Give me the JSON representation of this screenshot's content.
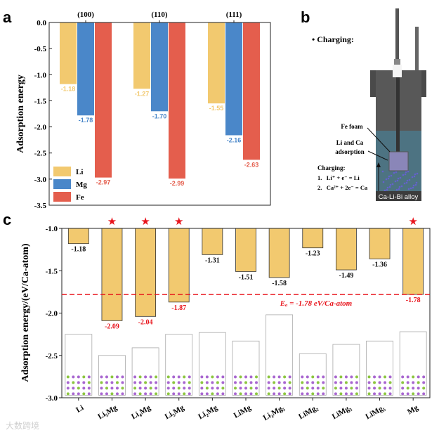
{
  "panel_labels": {
    "a": "a",
    "b": "b",
    "c": "c"
  },
  "colors": {
    "Li": "#f2c96f",
    "Mg": "#4a87c9",
    "Fe": "#e45e4d",
    "bar_c": "#f2c96f",
    "highlight": "#e8141c",
    "purple": "#a866d0",
    "green": "#8cc63f"
  },
  "chart_data": [
    {
      "id": "a",
      "type": "bar",
      "title": "",
      "xlabel": "",
      "ylabel": "Adsorption energy",
      "categories": [
        "(100)",
        "(110)",
        "(111)"
      ],
      "series": [
        {
          "name": "Li",
          "values": [
            -1.18,
            -1.27,
            -1.55
          ],
          "labels": [
            "-1.18",
            "-1.27",
            "-1.55"
          ]
        },
        {
          "name": "Mg",
          "values": [
            -1.78,
            -1.7,
            -2.16
          ],
          "labels": [
            "-1.78",
            "-1.70",
            "-2.16"
          ]
        },
        {
          "name": "Fe",
          "values": [
            -2.97,
            -2.99,
            -2.63
          ],
          "labels": [
            "-2.97",
            "-2.99",
            "-2.63"
          ]
        }
      ],
      "ylim": [
        -3.5,
        0.0
      ],
      "yticks": [
        "0.0",
        "-0.5",
        "-1.0",
        "-1.5",
        "-2.0",
        "-2.5",
        "-3.0",
        "-3.5"
      ],
      "legend": "bottom-left",
      "grid": false
    },
    {
      "id": "c",
      "type": "bar",
      "title": "",
      "xlabel": "",
      "ylabel": "Adsorption energy/(eV/Ca-atom)",
      "categories": [
        "Li",
        "Li₅Mg",
        "Li₄Mg",
        "Li₃Mg",
        "Li₂Mg",
        "LiMg",
        "Li₃Mg₅",
        "LiMg₂",
        "LiMg₃",
        "LiMg₅",
        "Mg"
      ],
      "values": [
        -1.18,
        -2.09,
        -2.04,
        -1.87,
        -1.31,
        -1.51,
        -1.58,
        -1.23,
        -1.49,
        -1.36,
        -1.78
      ],
      "labels": [
        "-1.18",
        "-2.09",
        "-2.04",
        "-1.87",
        "-1.31",
        "-1.51",
        "-1.58",
        "-1.23",
        "-1.49",
        "-1.36",
        "-1.78"
      ],
      "starred": [
        false,
        true,
        true,
        true,
        false,
        false,
        false,
        false,
        false,
        false,
        true
      ],
      "reference_line": {
        "value": -1.78,
        "label": "Eₐ = -1.78 eV/Ca-atom"
      },
      "ylim": [
        -3.0,
        -1.0
      ],
      "yticks": [
        "-1.0",
        "-1.5",
        "-2.0",
        "-2.5",
        "-3.0"
      ],
      "grid": false
    }
  ],
  "panel_b": {
    "heading": "Charging:",
    "fe_foam": "Fe foam",
    "adsorption_1": "Li and Ca",
    "adsorption_2": "adsorption",
    "charging_title": "Charging:",
    "reaction_1": "1.   Li⁺ + e⁻ = Li",
    "reaction_2": "2.   Ca²⁺ + 2e⁻ = Ca",
    "alloy": "Ca-Li-Bi alloy"
  },
  "watermark": "大数跨境"
}
